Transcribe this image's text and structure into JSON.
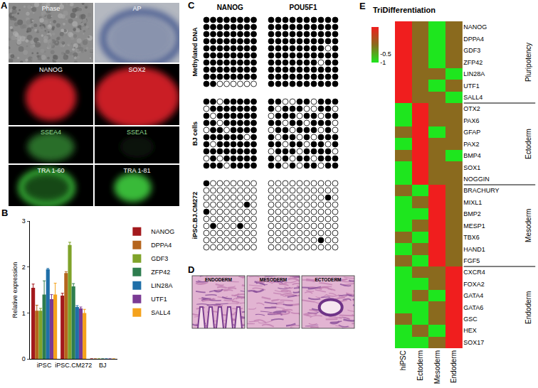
{
  "panel_labels": [
    "A",
    "B",
    "C",
    "D",
    "E"
  ],
  "panel_a": {
    "images": [
      "Phase",
      "AP",
      "NANOG",
      "SOX2",
      "SSEA4",
      "SSEA1",
      "TRA 1-60",
      "TRA 1-81"
    ]
  },
  "panel_c": {
    "columns": [
      "NANOG",
      "POU5F1"
    ],
    "rows": [
      {
        "label": "Methylated DNA",
        "grids": [
          [
            [
              1,
              1,
              1,
              1,
              1,
              1,
              1,
              1
            ],
            [
              1,
              1,
              1,
              1,
              1,
              1,
              1,
              1
            ],
            [
              1,
              1,
              1,
              1,
              1,
              1,
              1,
              1
            ],
            [
              1,
              1,
              1,
              1,
              1,
              1,
              1,
              1
            ],
            [
              1,
              1,
              1,
              1,
              1,
              1,
              1,
              1
            ],
            [
              1,
              1,
              1,
              1,
              1,
              1,
              1,
              1
            ],
            [
              1,
              1,
              1,
              1,
              1,
              1,
              1,
              1
            ],
            [
              1,
              1,
              1,
              1,
              1,
              1,
              1,
              1
            ],
            [
              1,
              1,
              1,
              1,
              1,
              1,
              1,
              1
            ],
            [
              1,
              1,
              0,
              0,
              0,
              0,
              0,
              0
            ]
          ],
          [
            [
              1,
              1,
              1,
              1,
              1,
              1,
              1,
              1,
              1,
              1
            ],
            [
              1,
              1,
              1,
              1,
              1,
              1,
              1,
              1,
              1,
              1
            ],
            [
              1,
              1,
              1,
              1,
              1,
              1,
              1,
              1,
              1,
              1
            ],
            [
              1,
              1,
              1,
              1,
              1,
              1,
              1,
              1,
              1,
              1
            ],
            [
              1,
              1,
              1,
              1,
              1,
              1,
              1,
              1,
              0,
              1
            ],
            [
              1,
              1,
              1,
              1,
              1,
              1,
              1,
              1,
              1,
              1
            ],
            [
              1,
              1,
              1,
              1,
              1,
              1,
              1,
              0,
              1,
              1
            ],
            [
              1,
              1,
              1,
              1,
              1,
              1,
              1,
              1,
              1,
              1
            ],
            [
              1,
              1,
              1,
              1,
              1,
              1,
              1,
              1,
              1,
              1
            ],
            [
              1,
              1,
              1,
              1,
              1,
              1,
              1,
              1,
              1,
              1
            ]
          ]
        ]
      },
      {
        "label": "BJ cells",
        "grids": [
          [
            [
              1,
              1,
              0,
              1,
              1,
              1,
              1,
              1
            ],
            [
              0,
              1,
              1,
              1,
              1,
              1,
              1,
              1
            ],
            [
              1,
              0,
              1,
              1,
              1,
              1,
              1,
              1
            ],
            [
              1,
              1,
              0,
              1,
              1,
              1,
              1,
              1
            ],
            [
              0,
              1,
              1,
              0,
              1,
              1,
              1,
              1
            ],
            [
              1,
              1,
              1,
              1,
              1,
              1,
              0,
              1
            ],
            [
              1,
              0,
              1,
              1,
              1,
              1,
              1,
              1
            ],
            [
              1,
              1,
              1,
              1,
              1,
              1,
              1,
              1
            ],
            [
              0,
              1,
              0,
              1,
              1,
              1,
              1,
              1
            ],
            [
              1,
              1,
              1,
              0,
              1,
              1,
              1,
              1
            ]
          ],
          [
            [
              1,
              1,
              0,
              0,
              1,
              1,
              0,
              1,
              1,
              1
            ],
            [
              1,
              0,
              1,
              1,
              1,
              0,
              0,
              1,
              1,
              0
            ],
            [
              0,
              1,
              1,
              1,
              0,
              1,
              1,
              0,
              1,
              1
            ],
            [
              1,
              1,
              0,
              1,
              1,
              0,
              1,
              1,
              1,
              0
            ],
            [
              0,
              1,
              1,
              0,
              1,
              1,
              1,
              0,
              1,
              0
            ],
            [
              1,
              0,
              1,
              1,
              0,
              1,
              0,
              1,
              1,
              1
            ],
            [
              1,
              1,
              0,
              1,
              1,
              0,
              1,
              1,
              0,
              1
            ],
            [
              0,
              1,
              1,
              1,
              0,
              1,
              1,
              1,
              1,
              0
            ],
            [
              1,
              0,
              1,
              0,
              1,
              1,
              0,
              1,
              1,
              1
            ],
            [
              1,
              1,
              0,
              1,
              0,
              1,
              1,
              0,
              1,
              1
            ]
          ]
        ]
      },
      {
        "label": "iPSC.BJ.CM272",
        "grids": [
          [
            [
              1,
              0,
              0,
              0,
              0,
              0,
              0,
              0
            ],
            [
              0,
              0,
              0,
              0,
              0,
              0,
              0,
              0
            ],
            [
              0,
              0,
              0,
              0,
              0,
              0,
              0,
              0
            ],
            [
              0,
              0,
              0,
              0,
              0,
              0,
              1,
              0
            ],
            [
              1,
              0,
              0,
              0,
              0,
              0,
              0,
              0
            ],
            [
              0,
              0,
              0,
              0,
              0,
              0,
              0,
              0
            ],
            [
              0,
              1,
              0,
              0,
              0,
              1,
              0,
              0
            ],
            [
              0,
              0,
              0,
              0,
              0,
              0,
              0,
              0
            ],
            [
              0,
              0,
              0,
              0,
              0,
              0,
              0,
              0
            ],
            [
              0,
              0,
              0,
              0,
              0,
              0,
              0,
              0
            ]
          ],
          [
            [
              0,
              0,
              0,
              0,
              0,
              0,
              0,
              0,
              0,
              0
            ],
            [
              0,
              0,
              0,
              0,
              0,
              0,
              0,
              0,
              0,
              0
            ],
            [
              0,
              0,
              0,
              0,
              0,
              0,
              0,
              0,
              1,
              0
            ],
            [
              0,
              0,
              0,
              0,
              0,
              0,
              0,
              0,
              0,
              0
            ],
            [
              0,
              0,
              0,
              0,
              0,
              0,
              0,
              0,
              0,
              0
            ],
            [
              0,
              0,
              0,
              0,
              0,
              0,
              0,
              0,
              0,
              0
            ],
            [
              0,
              0,
              0,
              0,
              0,
              0,
              0,
              0,
              0,
              0
            ],
            [
              0,
              0,
              0,
              0,
              0,
              0,
              0,
              0,
              0,
              0
            ],
            [
              0,
              0,
              0,
              0,
              0,
              0,
              0,
              1,
              0,
              0
            ],
            [
              0,
              0,
              0,
              0,
              0,
              0,
              0,
              0,
              0,
              0
            ]
          ]
        ]
      }
    ]
  },
  "panel_d": {
    "images": [
      "ENDODERM",
      "MESODERM",
      "ECTODERM"
    ]
  },
  "chart_data": [
    {
      "type": "bar",
      "categories": [
        "iPSC",
        "iPSC.CM272",
        "BJ"
      ],
      "y_label": "Relative expression",
      "ylim": [
        0,
        3
      ],
      "yticks": [
        0,
        1,
        2,
        3
      ],
      "legend": "right",
      "series": [
        {
          "name": "NANOG",
          "color": "#a3191d",
          "values": [
            1.55,
            1.38,
            0
          ],
          "errors": [
            0.08,
            0.05,
            0
          ]
        },
        {
          "name": "DPPA4",
          "color": "#b5651d",
          "values": [
            1.05,
            1.87,
            0
          ],
          "errors": [
            0.12,
            0.03,
            0
          ]
        },
        {
          "name": "GDF3",
          "color": "#7fa32a",
          "values": [
            1.05,
            2.48,
            0
          ],
          "errors": [
            0.05,
            0.06,
            0
          ]
        },
        {
          "name": "ZFP42",
          "color": "#2e7d4f",
          "values": [
            1.4,
            1.58,
            0
          ],
          "errors": [
            0.3,
            0.06,
            0
          ]
        },
        {
          "name": "LIN28A",
          "color": "#1f6fa8",
          "values": [
            1.95,
            1.13,
            0
          ],
          "errors": [
            0.02,
            0.03,
            0
          ]
        },
        {
          "name": "UTF1",
          "color": "#7a3a94",
          "values": [
            1.3,
            1.1,
            0
          ],
          "errors": [
            0.1,
            0.03,
            0
          ]
        },
        {
          "name": "SALL4",
          "color": "#f4a21c",
          "values": [
            1.4,
            1.0,
            0
          ],
          "errors": [
            0.25,
            0.08,
            0
          ]
        }
      ]
    },
    {
      "type": "heatmap",
      "title": "TriDifferentiation",
      "x": [
        "hiPSC",
        "Ectoderm",
        "Mesoderm",
        "Endoderm"
      ],
      "color_range": [
        -1,
        1
      ],
      "color_ticks": [
        -1,
        -0.5
      ],
      "groups": [
        {
          "name": "Pluripotency",
          "genes": [
            "NANOG",
            "DPPA4",
            "GDF3",
            "ZFP42",
            "LIN28A",
            "UTF1",
            "SALL4"
          ],
          "cells": [
            [
              1,
              0,
              -1,
              0
            ],
            [
              1,
              0,
              -1,
              0
            ],
            [
              1,
              0,
              -1,
              0
            ],
            [
              1,
              0,
              -1,
              0
            ],
            [
              1,
              0,
              0,
              -1
            ],
            [
              1,
              0,
              -1,
              0
            ],
            [
              1,
              0,
              0,
              -1
            ]
          ]
        },
        {
          "name": "Ectoderm",
          "genes": [
            "OTX2",
            "PAX6",
            "GFAP",
            "PAX2",
            "BMP4",
            "SOX1",
            "NOGGIN"
          ],
          "cells": [
            [
              -1,
              1,
              0,
              0
            ],
            [
              -1,
              1,
              0,
              0
            ],
            [
              0,
              1,
              -1,
              0
            ],
            [
              -1,
              1,
              0,
              0
            ],
            [
              0,
              1,
              0,
              -1
            ],
            [
              -1,
              1,
              0,
              0
            ],
            [
              -1,
              1,
              0,
              0
            ]
          ]
        },
        {
          "name": "Mesoderm",
          "genes": [
            "BRACHURY",
            "MIXL1",
            "BMP2",
            "MESP1",
            "TBX6",
            "HAND1",
            "FGF5"
          ],
          "cells": [
            [
              0,
              -1,
              1,
              0
            ],
            [
              -1,
              0,
              1,
              0
            ],
            [
              -1,
              -1,
              1,
              0
            ],
            [
              -1,
              0,
              1,
              0
            ],
            [
              0,
              -1,
              1,
              0
            ],
            [
              -1,
              0,
              1,
              0
            ],
            [
              0,
              -1,
              1,
              0
            ]
          ]
        },
        {
          "name": "Endoderm",
          "genes": [
            "CXCR4",
            "FOXA2",
            "GATA4",
            "GATA6",
            "GSC",
            "HEX",
            "SOX17"
          ],
          "cells": [
            [
              -1,
              0,
              0,
              1
            ],
            [
              -1,
              -1,
              0,
              1
            ],
            [
              -1,
              0,
              -1,
              1
            ],
            [
              -1,
              -1,
              0,
              1
            ],
            [
              0,
              -1,
              0,
              1
            ],
            [
              -1,
              0,
              -1,
              1
            ],
            [
              -1,
              -1,
              0,
              1
            ]
          ]
        }
      ]
    }
  ]
}
